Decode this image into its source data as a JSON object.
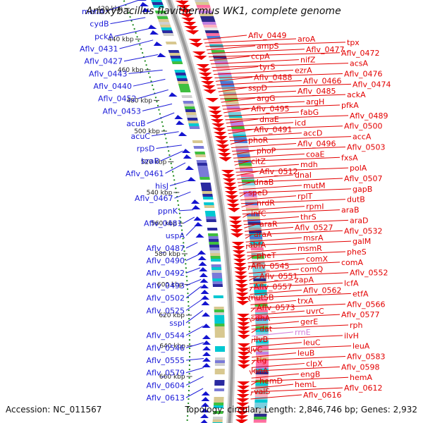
{
  "title": "Anoxybacillus flavithermus WK1, complete genome",
  "accession": "Accession: NC_011567",
  "summary": "Topology: circular; Length: 2,846,746 bp; Genes: 2,932",
  "colors": {
    "forward_label": "#1a1ad8",
    "reverse_label": "#e30000",
    "rna_label": "#d27ad8",
    "backbone": "#9a9a9a",
    "tick": "#1e8a1e",
    "reverse_gene": "#ee0000",
    "forward_gene": "#1515d0"
  },
  "ticks": [
    "420 kbp",
    "440 kbp",
    "460 kbp",
    "480 kbp",
    "500 kbp",
    "520 kbp",
    "540 kbp",
    "560 kbp",
    "580 kbp",
    "600 kbp",
    "620 kbp",
    "640 kbp",
    "660 kbp"
  ],
  "left_labels": [
    "menA",
    "cydB",
    "pckA",
    "Aflv_0431",
    "Aflv_0427",
    "Aflv_0443",
    "Aflv_0440",
    "Aflv_0452",
    "Aflv_0453",
    "acuB",
    "acuC",
    "rpsD",
    "braB",
    "Aflv_0461",
    "hisJ",
    "Aflv_0467",
    "ppnK",
    "Aflv_0481",
    "uspA",
    "Aflv_0487",
    "Aflv_0490",
    "Aflv_0492",
    "Aflv_0493",
    "Aflv_0502",
    "Aflv_0525",
    "sspI",
    "Aflv_0544",
    "Aflv_0546",
    "Aflv_0555",
    "Aflv_0579",
    "Aflv_0604",
    "Aflv_0613"
  ],
  "right_labels": [
    "Aflv_0449",
    "aroA",
    "tpx",
    "ampS",
    "Aflv_0477",
    "Aflv_0472",
    "ccpA",
    "nifZ",
    "acsA",
    "tyrS",
    "ezrA",
    "Aflv_0476",
    "Aflv_0488",
    "Aflv_0466",
    "Aflv_0474",
    "sspD",
    "Aflv_0485",
    "ackA",
    "argG",
    "argH",
    "pfkA",
    "Aflv_0495",
    "fabG",
    "Aflv_0489",
    "dnaE",
    "icd",
    "Aflv_0500",
    "Aflv_0491",
    "accD",
    "accA",
    "phoR",
    "Aflv_0496",
    "Aflv_0503",
    "phoP",
    "coaE",
    "fxsA",
    "citZ",
    "mdh",
    "polA",
    "Aflv_0512",
    "dnaI",
    "Aflv_0507",
    "dnaB",
    "mutM",
    "gapB",
    "speD",
    "rplT",
    "dutB",
    "nrdR",
    "rpmI",
    "araB",
    "infC",
    "thrS",
    "araD",
    "araR",
    "Aflv_0527",
    "Aflv_0532",
    "araA",
    "msrA",
    "galM",
    "abfA",
    "msmR",
    "pheS",
    "pheT",
    "comX",
    "comA",
    "Aflv_0545",
    "comQ",
    "Aflv_0552",
    "Aflv_0551",
    "zapA",
    "lcfA",
    "Aflv_0557",
    "Aflv_0562",
    "etfA",
    "mutSB",
    "trxA",
    "Aflv_0566",
    "Aflv_0573",
    "uvrC",
    "Aflv_0577",
    "sdhA",
    "gerE",
    "rph",
    "dat",
    "rrnE",
    "ilvH",
    "ilvB",
    "leuC",
    "leuA",
    "ilvC",
    "leuB",
    "Aflv_0583",
    "tig",
    "clpX",
    "Aflv_0598",
    "lonA",
    "engB",
    "hemA",
    "hemD",
    "hemL",
    "Aflv_0612",
    "valS",
    "Aflv_0616"
  ]
}
